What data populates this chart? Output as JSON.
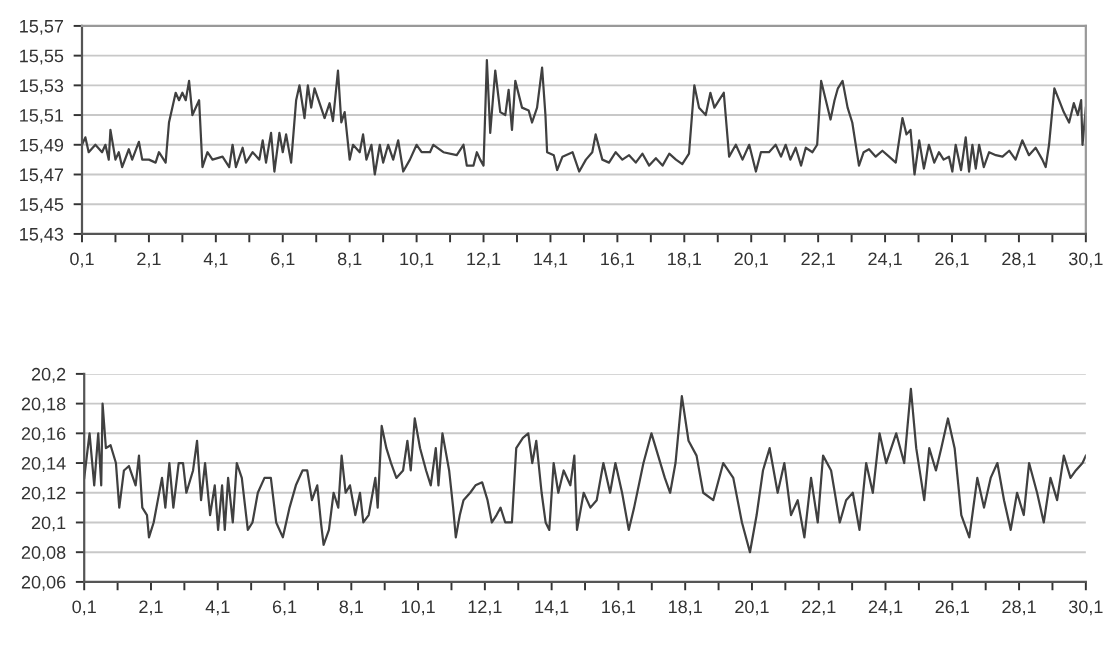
{
  "chart_data": [
    {
      "type": "line",
      "grid": "y",
      "marker": "none",
      "line_style": "solid",
      "xlim": [
        0.1,
        30.1
      ],
      "ylim": [
        15.43,
        15.57
      ],
      "xticks": [
        {
          "value": 0.1,
          "label": "0,1"
        },
        {
          "value": 1.1,
          "label": null
        },
        {
          "value": 2.1,
          "label": "2,1"
        },
        {
          "value": 3.1,
          "label": null
        },
        {
          "value": 4.1,
          "label": "4,1"
        },
        {
          "value": 5.1,
          "label": null
        },
        {
          "value": 6.1,
          "label": "6,1"
        },
        {
          "value": 7.1,
          "label": null
        },
        {
          "value": 8.1,
          "label": "8,1"
        },
        {
          "value": 9.1,
          "label": null
        },
        {
          "value": 10.1,
          "label": "10,1"
        },
        {
          "value": 11.1,
          "label": null
        },
        {
          "value": 12.1,
          "label": "12,1"
        },
        {
          "value": 13.1,
          "label": null
        },
        {
          "value": 14.1,
          "label": "14,1"
        },
        {
          "value": 15.1,
          "label": null
        },
        {
          "value": 16.1,
          "label": "16,1"
        },
        {
          "value": 17.1,
          "label": null
        },
        {
          "value": 18.1,
          "label": "18,1"
        },
        {
          "value": 19.1,
          "label": null
        },
        {
          "value": 20.1,
          "label": "20,1"
        },
        {
          "value": 21.1,
          "label": null
        },
        {
          "value": 22.1,
          "label": "22,1"
        },
        {
          "value": 23.1,
          "label": null
        },
        {
          "value": 24.1,
          "label": "24,1"
        },
        {
          "value": 25.1,
          "label": null
        },
        {
          "value": 26.1,
          "label": "26,1"
        },
        {
          "value": 27.1,
          "label": null
        },
        {
          "value": 28.1,
          "label": "28,1"
        },
        {
          "value": 29.1,
          "label": null
        },
        {
          "value": 30.1,
          "label": "30,1"
        }
      ],
      "yticks": [
        {
          "value": 15.43,
          "label": "15,43"
        },
        {
          "value": 15.45,
          "label": "15,45"
        },
        {
          "value": 15.47,
          "label": "15,47"
        },
        {
          "value": 15.49,
          "label": "15,49"
        },
        {
          "value": 15.51,
          "label": "15,51"
        },
        {
          "value": 15.53,
          "label": "15,53"
        },
        {
          "value": 15.55,
          "label": "15,55"
        },
        {
          "value": 15.57,
          "label": "15,57"
        }
      ],
      "series": [
        {
          "color": "#404040",
          "x": [
            0.1,
            0.2,
            0.3,
            0.5,
            0.7,
            0.8,
            0.9,
            0.95,
            1.1,
            1.2,
            1.3,
            1.5,
            1.6,
            1.8,
            1.9,
            2.1,
            2.3,
            2.4,
            2.6,
            2.7,
            2.9,
            3.0,
            3.1,
            3.2,
            3.3,
            3.4,
            3.6,
            3.7,
            3.85,
            4.0,
            4.3,
            4.5,
            4.6,
            4.7,
            4.9,
            5.0,
            5.2,
            5.4,
            5.5,
            5.6,
            5.75,
            5.85,
            6.0,
            6.1,
            6.2,
            6.35,
            6.5,
            6.6,
            6.75,
            6.85,
            6.95,
            7.05,
            7.2,
            7.35,
            7.5,
            7.6,
            7.75,
            7.85,
            7.95,
            8.1,
            8.2,
            8.4,
            8.5,
            8.6,
            8.75,
            8.85,
            9.0,
            9.1,
            9.25,
            9.4,
            9.55,
            9.7,
            9.9,
            10.1,
            10.25,
            10.5,
            10.6,
            10.9,
            11.3,
            11.5,
            11.6,
            11.8,
            11.9,
            12.0,
            12.1,
            12.2,
            12.3,
            12.45,
            12.6,
            12.75,
            12.85,
            12.95,
            13.05,
            13.25,
            13.45,
            13.55,
            13.7,
            13.85,
            13.95,
            14.0,
            14.2,
            14.3,
            14.46,
            14.76,
            14.96,
            15.16,
            15.35,
            15.45,
            15.65,
            15.85,
            16.05,
            16.25,
            16.45,
            16.65,
            16.85,
            17.05,
            17.25,
            17.45,
            17.65,
            17.85,
            18.04,
            18.24,
            18.4,
            18.54,
            18.74,
            18.88,
            19.0,
            19.14,
            19.28,
            19.44,
            19.64,
            19.84,
            20.04,
            20.24,
            20.39,
            20.63,
            20.83,
            20.99,
            21.13,
            21.27,
            21.43,
            21.59,
            21.73,
            21.93,
            22.07,
            22.19,
            22.33,
            22.47,
            22.59,
            22.69,
            22.83,
            22.98,
            23.12,
            23.32,
            23.46,
            23.62,
            23.82,
            24.02,
            24.22,
            24.42,
            24.62,
            24.74,
            24.86,
            24.98,
            25.12,
            25.26,
            25.41,
            25.57,
            25.71,
            25.85,
            26.01,
            26.11,
            26.21,
            26.37,
            26.51,
            26.61,
            26.71,
            26.81,
            26.91,
            27.05,
            27.21,
            27.41,
            27.61,
            27.81,
            28.0,
            28.2,
            28.4,
            28.6,
            28.8,
            28.9,
            29.0,
            29.16,
            29.3,
            29.44,
            29.6,
            29.74,
            29.86,
            29.96,
            30.0,
            30.1
          ],
          "values": [
            15.49,
            15.495,
            15.485,
            15.49,
            15.485,
            15.49,
            15.48,
            15.5,
            15.48,
            15.485,
            15.475,
            15.487,
            15.48,
            15.492,
            15.48,
            15.48,
            15.478,
            15.485,
            15.478,
            15.505,
            15.525,
            15.52,
            15.525,
            15.52,
            15.533,
            15.51,
            15.52,
            15.475,
            15.485,
            15.48,
            15.482,
            15.475,
            15.49,
            15.475,
            15.488,
            15.478,
            15.485,
            15.48,
            15.493,
            15.478,
            15.498,
            15.472,
            15.498,
            15.485,
            15.497,
            15.478,
            15.52,
            15.53,
            15.508,
            15.53,
            15.515,
            15.528,
            15.518,
            15.508,
            15.518,
            15.506,
            15.54,
            15.505,
            15.512,
            15.48,
            15.49,
            15.485,
            15.497,
            15.48,
            15.49,
            15.47,
            15.49,
            15.478,
            15.49,
            15.48,
            15.493,
            15.472,
            15.48,
            15.49,
            15.485,
            15.485,
            15.49,
            15.485,
            15.483,
            15.49,
            15.476,
            15.476,
            15.485,
            15.48,
            15.476,
            15.547,
            15.498,
            15.54,
            15.512,
            15.51,
            15.527,
            15.5,
            15.533,
            15.515,
            15.513,
            15.505,
            15.515,
            15.542,
            15.51,
            15.485,
            15.483,
            15.473,
            15.482,
            15.485,
            15.472,
            15.48,
            15.485,
            15.497,
            15.48,
            15.478,
            15.485,
            15.48,
            15.483,
            15.478,
            15.484,
            15.476,
            15.481,
            15.476,
            15.484,
            15.48,
            15.477,
            15.484,
            15.53,
            15.515,
            15.51,
            15.525,
            15.515,
            15.52,
            15.525,
            15.482,
            15.49,
            15.48,
            15.49,
            15.472,
            15.485,
            15.485,
            15.49,
            15.482,
            15.49,
            15.48,
            15.488,
            15.476,
            15.488,
            15.485,
            15.49,
            15.533,
            15.52,
            15.507,
            15.52,
            15.528,
            15.533,
            15.515,
            15.505,
            15.476,
            15.485,
            15.487,
            15.482,
            15.486,
            15.482,
            15.478,
            15.508,
            15.497,
            15.5,
            15.47,
            15.493,
            15.474,
            15.49,
            15.478,
            15.485,
            15.48,
            15.482,
            15.472,
            15.49,
            15.473,
            15.495,
            15.472,
            15.49,
            15.474,
            15.49,
            15.475,
            15.485,
            15.483,
            15.482,
            15.486,
            15.48,
            15.493,
            15.483,
            15.488,
            15.48,
            15.475,
            15.49,
            15.528,
            15.52,
            15.512,
            15.505,
            15.518,
            15.51,
            15.52,
            15.49,
            15.515
          ]
        }
      ]
    },
    {
      "type": "line",
      "grid": "y",
      "marker": "none",
      "line_style": "solid",
      "xlim": [
        0.1,
        30.1
      ],
      "ylim": [
        20.06,
        20.2
      ],
      "xticks": [
        {
          "value": 0.1,
          "label": "0,1"
        },
        {
          "value": 1.1,
          "label": null
        },
        {
          "value": 2.1,
          "label": "2,1"
        },
        {
          "value": 3.1,
          "label": null
        },
        {
          "value": 4.1,
          "label": "4,1"
        },
        {
          "value": 5.1,
          "label": null
        },
        {
          "value": 6.1,
          "label": "6,1"
        },
        {
          "value": 7.1,
          "label": null
        },
        {
          "value": 8.1,
          "label": "8,1"
        },
        {
          "value": 9.1,
          "label": null
        },
        {
          "value": 10.1,
          "label": "10,1"
        },
        {
          "value": 11.1,
          "label": null
        },
        {
          "value": 12.1,
          "label": "12,1"
        },
        {
          "value": 13.1,
          "label": null
        },
        {
          "value": 14.1,
          "label": "14,1"
        },
        {
          "value": 15.1,
          "label": null
        },
        {
          "value": 16.1,
          "label": "16,1"
        },
        {
          "value": 17.1,
          "label": null
        },
        {
          "value": 18.1,
          "label": "18,1"
        },
        {
          "value": 19.1,
          "label": null
        },
        {
          "value": 20.1,
          "label": "20,1"
        },
        {
          "value": 21.1,
          "label": null
        },
        {
          "value": 22.1,
          "label": "22,1"
        },
        {
          "value": 23.1,
          "label": null
        },
        {
          "value": 24.1,
          "label": "24,1"
        },
        {
          "value": 25.1,
          "label": null
        },
        {
          "value": 26.1,
          "label": "26,1"
        },
        {
          "value": 27.1,
          "label": null
        },
        {
          "value": 28.1,
          "label": "28,1"
        },
        {
          "value": 29.1,
          "label": null
        },
        {
          "value": 30.1,
          "label": "30,1"
        }
      ],
      "yticks": [
        {
          "value": 20.06,
          "label": "20,06"
        },
        {
          "value": 20.08,
          "label": "20,08"
        },
        {
          "value": 20.1,
          "label": "20,1"
        },
        {
          "value": 20.12,
          "label": "20,12"
        },
        {
          "value": 20.14,
          "label": "20,14"
        },
        {
          "value": 20.16,
          "label": "20,16"
        },
        {
          "value": 20.18,
          "label": "20,18"
        },
        {
          "value": 20.2,
          "label": "20,2"
        }
      ],
      "series": [
        {
          "color": "#404040",
          "x": [
            0.1,
            0.26,
            0.4,
            0.52,
            0.61,
            0.65,
            0.75,
            0.89,
            1.05,
            1.15,
            1.29,
            1.44,
            1.64,
            1.74,
            1.84,
            1.98,
            2.04,
            2.18,
            2.43,
            2.53,
            2.65,
            2.77,
            2.93,
            3.06,
            3.16,
            3.36,
            3.48,
            3.6,
            3.72,
            3.87,
            4.01,
            4.11,
            4.23,
            4.31,
            4.41,
            4.55,
            4.67,
            4.82,
            5.0,
            5.14,
            5.3,
            5.5,
            5.69,
            5.85,
            6.05,
            6.25,
            6.44,
            6.64,
            6.78,
            6.92,
            7.08,
            7.19,
            7.27,
            7.43,
            7.57,
            7.71,
            7.81,
            7.93,
            8.06,
            8.22,
            8.36,
            8.46,
            8.62,
            8.82,
            8.89,
            9.01,
            9.15,
            9.29,
            9.45,
            9.65,
            9.78,
            9.88,
            10.0,
            10.16,
            10.34,
            10.48,
            10.63,
            10.71,
            10.83,
            11.03,
            11.15,
            11.23,
            11.35,
            11.46,
            11.66,
            11.82,
            12.02,
            12.18,
            12.31,
            12.45,
            12.57,
            12.71,
            12.91,
            13.04,
            13.24,
            13.4,
            13.52,
            13.64,
            13.8,
            13.92,
            14.03,
            14.16,
            14.3,
            14.46,
            14.66,
            14.78,
            14.86,
            15.06,
            15.26,
            15.45,
            15.65,
            15.85,
            16.01,
            16.21,
            16.41,
            16.57,
            16.85,
            17.09,
            17.29,
            17.49,
            17.65,
            17.81,
            18.0,
            18.2,
            18.44,
            18.64,
            18.94,
            19.24,
            19.54,
            19.8,
            20.04,
            20.24,
            20.43,
            20.63,
            20.87,
            21.07,
            21.27,
            21.47,
            21.67,
            21.87,
            22.07,
            22.23,
            22.47,
            22.73,
            22.92,
            23.12,
            23.32,
            23.52,
            23.72,
            23.92,
            24.12,
            24.42,
            24.66,
            24.86,
            25.02,
            25.26,
            25.41,
            25.61,
            25.77,
            25.97,
            26.17,
            26.37,
            26.61,
            26.85,
            27.05,
            27.25,
            27.45,
            27.65,
            27.85,
            28.04,
            28.24,
            28.4,
            28.64,
            28.84,
            29.04,
            29.24,
            29.44,
            29.64,
            29.8,
            30.0,
            30.1
          ],
          "values": [
            20.13,
            20.16,
            20.125,
            20.16,
            20.125,
            20.18,
            20.15,
            20.152,
            20.14,
            20.11,
            20.135,
            20.138,
            20.125,
            20.145,
            20.11,
            20.105,
            20.09,
            20.1,
            20.13,
            20.11,
            20.14,
            20.11,
            20.14,
            20.14,
            20.12,
            20.135,
            20.155,
            20.115,
            20.14,
            20.105,
            20.125,
            20.095,
            20.125,
            20.095,
            20.13,
            20.1,
            20.14,
            20.13,
            20.095,
            20.1,
            20.12,
            20.13,
            20.13,
            20.1,
            20.09,
            20.11,
            20.125,
            20.135,
            20.135,
            20.115,
            20.125,
            20.1,
            20.085,
            20.095,
            20.12,
            20.11,
            20.145,
            20.12,
            20.125,
            20.105,
            20.12,
            20.1,
            20.105,
            20.13,
            20.11,
            20.165,
            20.15,
            20.14,
            20.13,
            20.135,
            20.155,
            20.135,
            20.17,
            20.15,
            20.135,
            20.125,
            20.15,
            20.125,
            20.16,
            20.135,
            20.11,
            20.09,
            20.105,
            20.115,
            20.12,
            20.125,
            20.127,
            20.115,
            20.1,
            20.105,
            20.11,
            20.1,
            20.1,
            20.15,
            20.157,
            20.16,
            20.14,
            20.155,
            20.12,
            20.1,
            20.095,
            20.14,
            20.12,
            20.135,
            20.125,
            20.145,
            20.095,
            20.12,
            20.11,
            20.115,
            20.14,
            20.12,
            20.14,
            20.12,
            20.095,
            20.11,
            20.14,
            20.16,
            20.145,
            20.13,
            20.12,
            20.14,
            20.185,
            20.155,
            20.145,
            20.12,
            20.115,
            20.14,
            20.13,
            20.1,
            20.08,
            20.105,
            20.135,
            20.15,
            20.12,
            20.14,
            20.105,
            20.115,
            20.09,
            20.13,
            20.1,
            20.145,
            20.135,
            20.1,
            20.115,
            20.12,
            20.095,
            20.14,
            20.12,
            20.16,
            20.14,
            20.16,
            20.14,
            20.19,
            20.15,
            20.115,
            20.15,
            20.135,
            20.15,
            20.17,
            20.15,
            20.105,
            20.09,
            20.13,
            20.11,
            20.13,
            20.14,
            20.115,
            20.095,
            20.12,
            20.105,
            20.14,
            20.12,
            20.1,
            20.13,
            20.115,
            20.145,
            20.13,
            20.135,
            20.14,
            20.145
          ]
        }
      ]
    }
  ]
}
